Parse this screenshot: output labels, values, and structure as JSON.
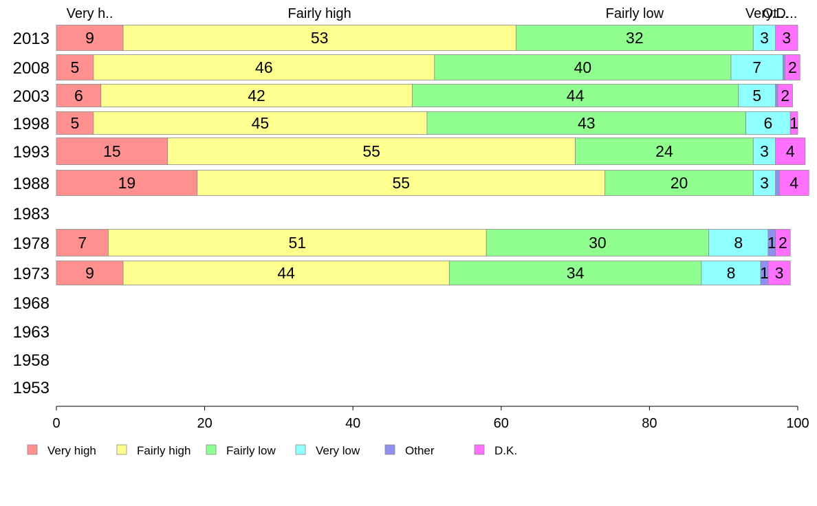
{
  "chart_data": {
    "type": "bar",
    "orientation": "horizontal",
    "stacked": true,
    "categories": [
      "2013",
      "2008",
      "2003",
      "1998",
      "1993",
      "1988",
      "1983",
      "1978",
      "1973",
      "1968",
      "1963",
      "1958",
      "1953"
    ],
    "series": [
      {
        "name": "Very high",
        "color": "#ff9090",
        "values": [
          9.0,
          5.0,
          6.0,
          5.0,
          15.0,
          19.0,
          null,
          7.0,
          9.0,
          null,
          null,
          null,
          null
        ]
      },
      {
        "name": "Fairly high",
        "color": "#ffff90",
        "values": [
          53.0,
          46.0,
          42.0,
          45.0,
          55.0,
          55.0,
          null,
          51.0,
          44.0,
          null,
          null,
          null,
          null
        ]
      },
      {
        "name": "Fairly low",
        "color": "#90ff90",
        "values": [
          32.0,
          40.0,
          44.0,
          43.0,
          24.0,
          20.0,
          null,
          30.0,
          34.0,
          null,
          null,
          null,
          null
        ]
      },
      {
        "name": "Very low",
        "color": "#90ffff",
        "values": [
          3.0,
          7.0,
          5.0,
          6.0,
          3.0,
          3.0,
          null,
          8.0,
          8.0,
          null,
          null,
          null,
          null
        ]
      },
      {
        "name": "Other",
        "color": "#9090f0",
        "values": [
          0.0,
          0.3,
          0.3,
          0.0,
          0.0,
          0.5,
          null,
          1.0,
          1.0,
          null,
          null,
          null,
          null
        ]
      },
      {
        "name": "D.K.",
        "color": "#ff70ff",
        "values": [
          3.0,
          2.0,
          2.0,
          1.0,
          4.0,
          4.0,
          null,
          2.0,
          3.0,
          null,
          null,
          null,
          null
        ]
      }
    ],
    "labels": [
      [
        "9",
        "53",
        "32",
        "3",
        "",
        "3"
      ],
      [
        "5",
        "46",
        "40",
        "7",
        "",
        "2"
      ],
      [
        "6",
        "42",
        "44",
        "5",
        "",
        "2"
      ],
      [
        "5",
        "45",
        "43",
        "6",
        "",
        "1"
      ],
      [
        "15",
        "55",
        "24",
        "3",
        "",
        "4"
      ],
      [
        "19",
        "55",
        "20",
        "3",
        "",
        "4"
      ],
      [
        "",
        "",
        "",
        "",
        "",
        ""
      ],
      [
        "7",
        "51",
        "30",
        "8",
        "1",
        "2"
      ],
      [
        "9",
        "44",
        "34",
        "8",
        "1",
        "3"
      ],
      [
        "",
        "",
        "",
        "",
        "",
        ""
      ],
      [
        "",
        "",
        "",
        "",
        "",
        ""
      ],
      [
        "",
        "",
        "",
        "",
        "",
        ""
      ],
      [
        "",
        "",
        "",
        "",
        "",
        ""
      ]
    ],
    "top_labels": [
      "Very h..",
      "Fairly high",
      "Fairly low",
      "Very...",
      "Ot...",
      "D..."
    ],
    "xlim": [
      0,
      100
    ],
    "xticks": [
      0,
      20,
      40,
      60,
      80,
      100
    ],
    "legend": {
      "position": "bottom",
      "entries": [
        "Very high",
        "Fairly high",
        "Fairly low",
        "Very low",
        "Other",
        "D.K."
      ]
    },
    "grid": false
  }
}
